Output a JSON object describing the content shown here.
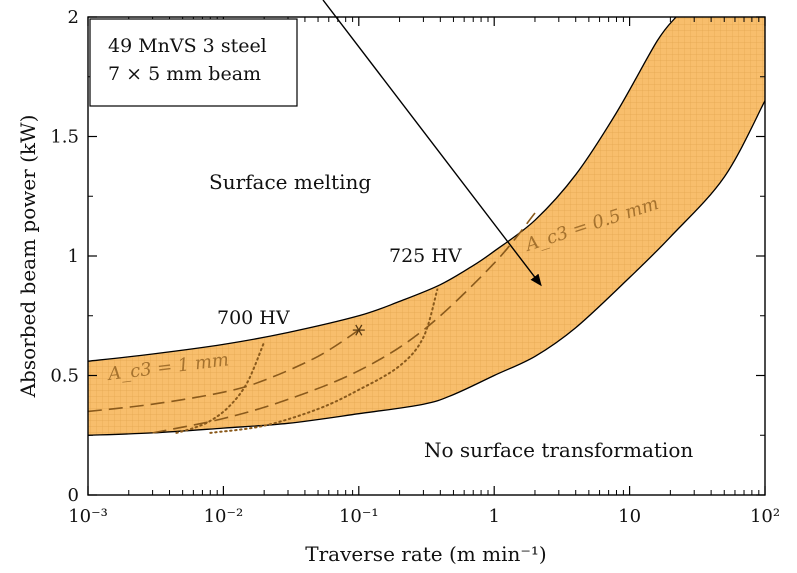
{
  "chart_data": {
    "type": "area",
    "title": "",
    "xlabel": "Traverse rate (m min⁻¹)",
    "ylabel": "Absorbed beam power (kW)",
    "x_scale": "log",
    "xlim": [
      0.001,
      100
    ],
    "ylim": [
      0,
      2
    ],
    "x_ticks": [
      0.001,
      0.01,
      0.1,
      1,
      10,
      100
    ],
    "x_tick_labels": [
      "10⁻³",
      "10⁻²",
      "10⁻¹",
      "1",
      "10",
      "10²"
    ],
    "y_ticks": [
      0,
      0.5,
      1,
      1.5,
      2
    ],
    "y_tick_labels": [
      "0",
      "0.5",
      "1",
      "1.5",
      "2"
    ],
    "grid": false,
    "legend_box": [
      "49 MnVS 3 steel",
      "7 × 5 mm beam"
    ],
    "band": {
      "fill_color": "#f8be6c",
      "grid_color": "#e4a650",
      "upper": {
        "x": [
          0.001,
          0.003,
          0.01,
          0.03,
          0.1,
          0.2,
          0.4,
          0.7,
          1,
          2,
          4,
          8,
          16,
          22
        ],
        "y": [
          0.56,
          0.59,
          0.63,
          0.68,
          0.75,
          0.81,
          0.88,
          0.96,
          1.02,
          1.15,
          1.34,
          1.6,
          1.9,
          2.0
        ]
      },
      "lower": {
        "x": [
          0.001,
          0.003,
          0.01,
          0.03,
          0.1,
          0.3,
          0.5,
          1,
          2,
          4,
          10,
          20,
          50,
          100
        ],
        "y": [
          0.25,
          0.26,
          0.28,
          0.3,
          0.34,
          0.38,
          0.42,
          0.5,
          0.58,
          0.7,
          0.91,
          1.08,
          1.33,
          1.65
        ]
      }
    },
    "dashed_series": [
      {
        "name": "A_c3 = 1 mm",
        "x": [
          0.001,
          0.003,
          0.01,
          0.02,
          0.05,
          0.1
        ],
        "y": [
          0.35,
          0.38,
          0.43,
          0.48,
          0.58,
          0.69
        ]
      },
      {
        "name": "A_c3 = 0.5 mm",
        "x": [
          0.003,
          0.01,
          0.03,
          0.1,
          0.3,
          1,
          2
        ],
        "y": [
          0.26,
          0.32,
          0.4,
          0.52,
          0.69,
          0.97,
          1.18
        ]
      }
    ],
    "dotted_series": [
      {
        "name": "700 HV",
        "x": [
          0.0045,
          0.006,
          0.008,
          0.011,
          0.015,
          0.02
        ],
        "y": [
          0.26,
          0.28,
          0.31,
          0.37,
          0.47,
          0.64
        ]
      },
      {
        "name": "725 HV",
        "x": [
          0.008,
          0.02,
          0.05,
          0.1,
          0.2,
          0.3,
          0.38
        ],
        "y": [
          0.26,
          0.29,
          0.36,
          0.44,
          0.54,
          0.66,
          0.86
        ]
      }
    ],
    "star_marker": {
      "x": 0.1,
      "y": 0.69
    },
    "annotations": {
      "surface_melting": "Surface melting",
      "no_transformation": "No surface transformation",
      "hv_700": "700 HV",
      "hv_725": "725 HV",
      "ac3_1mm": "A_c3 = 1 mm",
      "ac3_05mm": "A_c3 = 0.5 mm"
    },
    "arrow": {
      "to_x": 2.2,
      "to_y": 0.88
    }
  }
}
